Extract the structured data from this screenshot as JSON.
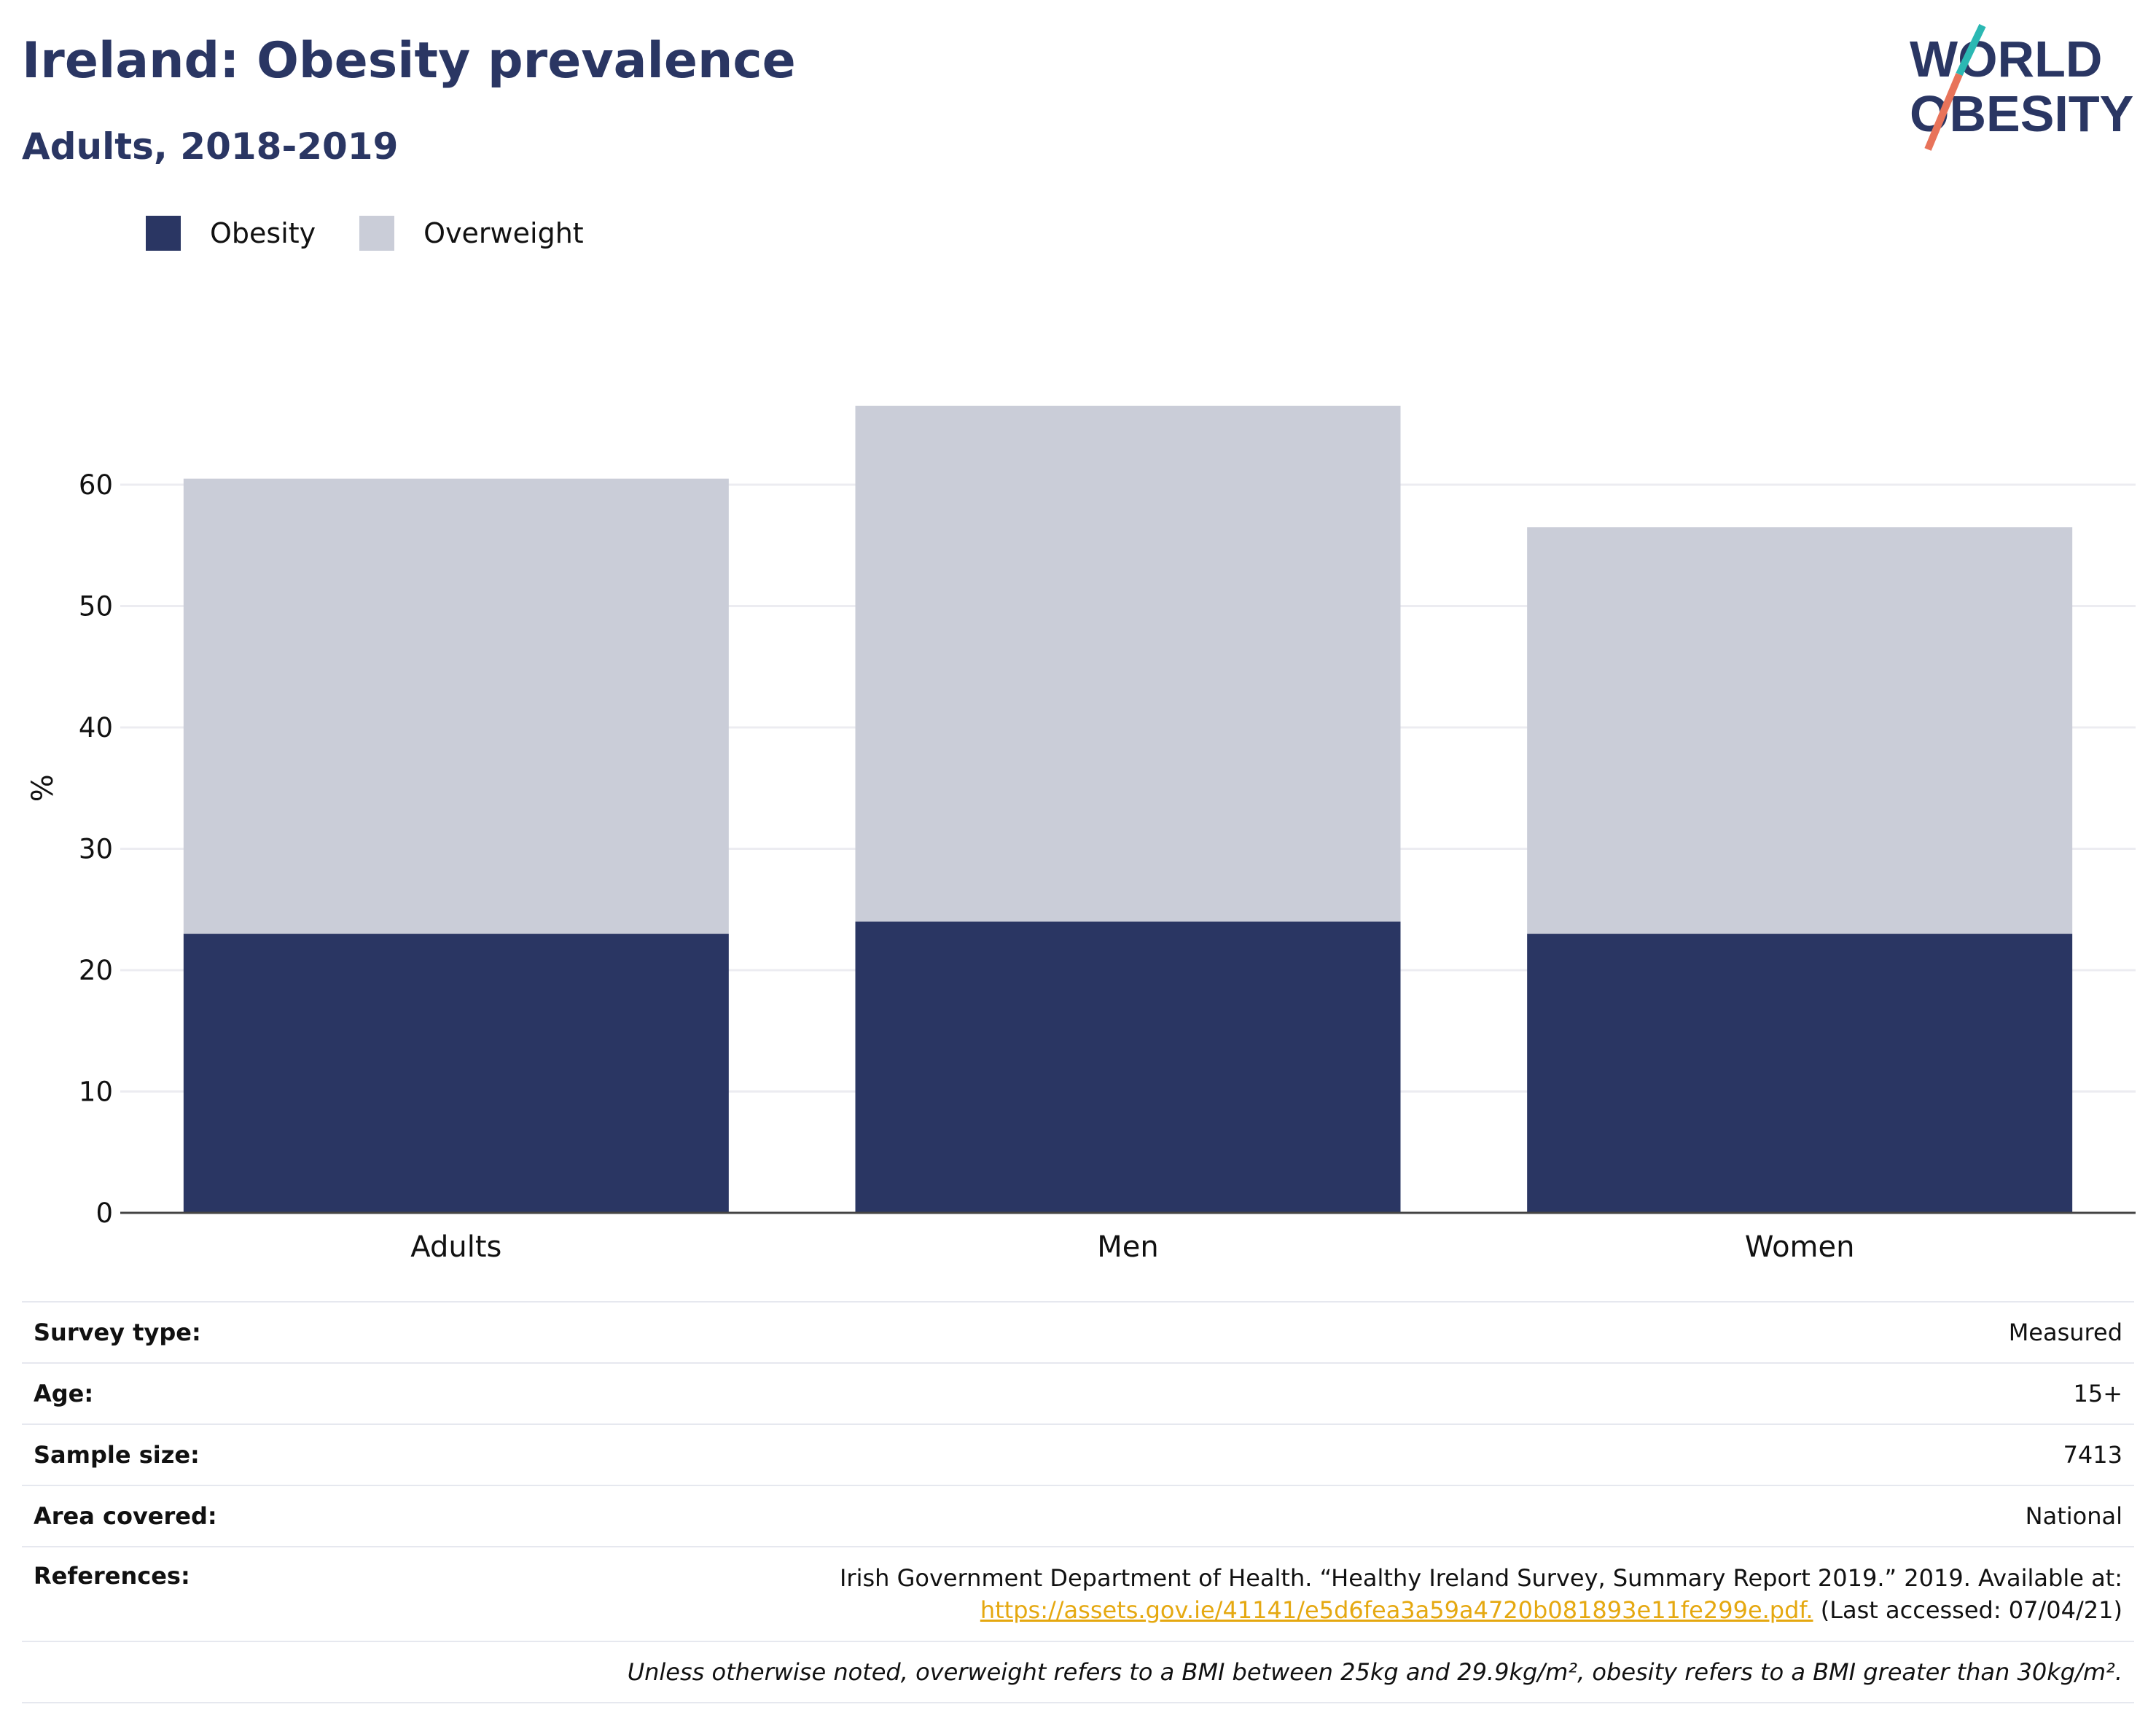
{
  "header": {
    "title": "Ireland: Obesity prevalence",
    "subtitle": "Adults, 2018-2019"
  },
  "logo": {
    "line1": "WORLD",
    "line2": "OBESITY"
  },
  "colors": {
    "obesity": "#2a3663",
    "overweight": "#cacdd8",
    "accent_teal": "#2bb8b3",
    "accent_coral": "#e8735a",
    "link": "#e5a810"
  },
  "legend": {
    "obesity_label": "Obesity",
    "overweight_label": "Overweight"
  },
  "chart_data": {
    "type": "bar",
    "stacked": true,
    "categories": [
      "Adults",
      "Men",
      "Women"
    ],
    "series": [
      {
        "name": "Obesity",
        "values": [
          23,
          24,
          23
        ]
      },
      {
        "name": "Overweight",
        "values": [
          37.5,
          42.5,
          33.5
        ]
      }
    ],
    "ylabel": "%",
    "ylim": [
      0,
      70
    ],
    "yticks": [
      0,
      10,
      20,
      30,
      40,
      50,
      60
    ],
    "grid": true,
    "legend_position": "top-left"
  },
  "meta": {
    "survey_type": {
      "label": "Survey type:",
      "value": "Measured"
    },
    "age": {
      "label": "Age:",
      "value": "15+"
    },
    "sample_size": {
      "label": "Sample size:",
      "value": "7413"
    },
    "area": {
      "label": "Area covered:",
      "value": "National"
    },
    "references": {
      "label": "References:",
      "text": "Irish Government Department of Health. “Healthy Ireland Survey, Summary Report 2019.” 2019. Available at:",
      "link": "https://assets.gov.ie/41141/e5d6fea3a59a4720b081893e11fe299e.pdf.",
      "accessed": "(Last accessed: 07/04/21)"
    },
    "note": "Unless otherwise noted, overweight refers to a BMI between 25kg and 29.9kg/m², obesity refers to a BMI greater than 30kg/m²."
  }
}
